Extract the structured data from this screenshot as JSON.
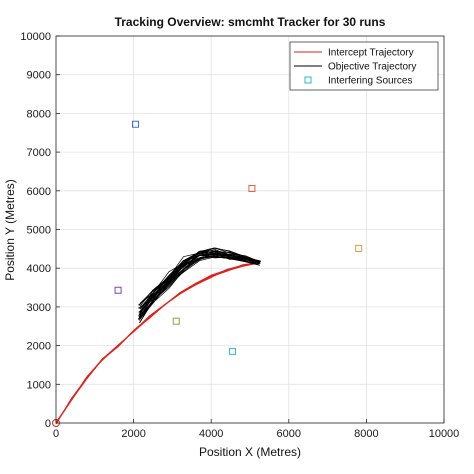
{
  "chart_data": {
    "type": "line",
    "title": "Tracking Overview:  smcmht  Tracker for 30 runs",
    "xlabel": "Position X (Metres)",
    "ylabel": "Position Y (Metres)",
    "xlim": [
      0,
      10000
    ],
    "ylim": [
      0,
      10000
    ],
    "xticks": [
      0,
      2000,
      4000,
      6000,
      8000,
      10000
    ],
    "yticks": [
      0,
      1000,
      2000,
      3000,
      4000,
      5000,
      6000,
      7000,
      8000,
      9000,
      10000
    ],
    "grid": true,
    "legend_position": "top-right",
    "legend": [
      {
        "label": "Intercept Trajectory",
        "color": "#e0201b",
        "marker": "line"
      },
      {
        "label": "Objective Trajectory",
        "color": "#000000",
        "marker": "line"
      },
      {
        "label": "Interfering Sources",
        "color": "#22b7d6",
        "marker": "square"
      }
    ],
    "series": [
      {
        "name": "Intercept Trajectory",
        "color": "#e0201b",
        "x": [
          0,
          400,
          800,
          1200,
          1600,
          2000,
          2400,
          2800,
          3200,
          3600,
          4000,
          4400,
          4800,
          5200
        ],
        "y": [
          0,
          620,
          1170,
          1640,
          1990,
          2380,
          2730,
          3060,
          3350,
          3600,
          3790,
          3940,
          4060,
          4120
        ]
      },
      {
        "name": "Objective Trajectory",
        "color": "#000000",
        "x": [
          2150,
          2500,
          2900,
          3300,
          3700,
          4100,
          4500,
          4900,
          5250
        ],
        "y": [
          2850,
          3250,
          3700,
          4100,
          4350,
          4400,
          4330,
          4250,
          4150
        ]
      },
      {
        "name": "Interfering Sources",
        "color": "#22b7d6",
        "points": [
          {
            "x": 2050,
            "y": 7720,
            "color": "#3b6fd1"
          },
          {
            "x": 5050,
            "y": 6060,
            "color": "#e0603a"
          },
          {
            "x": 7800,
            "y": 4510,
            "color": "#e0a23a"
          },
          {
            "x": 1600,
            "y": 3430,
            "color": "#8a3fb3"
          },
          {
            "x": 3100,
            "y": 2630,
            "color": "#88a83a"
          },
          {
            "x": 4550,
            "y": 1850,
            "color": "#36b4dc"
          }
        ]
      }
    ],
    "origin_marker": {
      "x": 0,
      "y": 0,
      "color": "#e0201b"
    }
  }
}
